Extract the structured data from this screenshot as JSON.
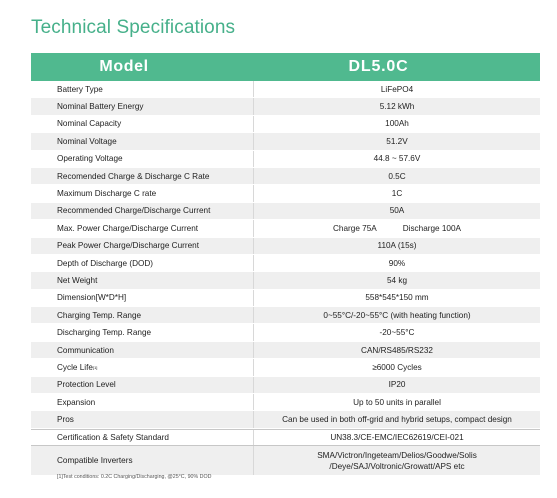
{
  "title": "Technical Specifications",
  "table": {
    "header_label": "Model",
    "header_value": "DL5.0C",
    "rows": [
      {
        "label": "Battery Type",
        "value": "LiFePO4"
      },
      {
        "label": "Nominal Battery Energy",
        "value": "5.12 kWh"
      },
      {
        "label": "Nominal Capacity",
        "value": "100Ah"
      },
      {
        "label": "Nominal Voltage",
        "value": "51.2V"
      },
      {
        "label": "Operating Voltage",
        "value": "44.8 ~ 57.6V"
      },
      {
        "label": "Recomended Charge & Discharge C Rate",
        "value": "0.5C"
      },
      {
        "label": "Maximum Discharge C rate",
        "value": "1C"
      },
      {
        "label": "Recommended Charge/Discharge Current",
        "value": "50A"
      },
      {
        "label": "Max. Power Charge/Discharge Current",
        "value_a": "Charge 75A",
        "value_b": "Discharge 100A"
      },
      {
        "label": "Peak Power Charge/Discharge Current",
        "value": "110A (15s)"
      },
      {
        "label": "Depth of Discharge (DOD)",
        "value": "90%"
      },
      {
        "label": "Net Weight",
        "value": "54 kg"
      },
      {
        "label": "Dimension[W*D*H]",
        "value": "558*545*150 mm"
      },
      {
        "label": "Charging Temp. Range",
        "value": "0~55°C/-20~55°C (with heating function)"
      },
      {
        "label": "Discharging Temp. Range",
        "value": "-20~55°C"
      },
      {
        "label": "Communication",
        "value": "CAN/RS485/RS232"
      },
      {
        "label": "Cycle Life",
        "label_sup": "[1]",
        "value": "≥6000 Cycles"
      },
      {
        "label": "Protection Level",
        "value": "IP20"
      },
      {
        "label": "Expansion",
        "value": "Up to 50 units in parallel"
      },
      {
        "label": "Pros",
        "value": "Can be used in both off-grid and hybrid setups, compact design"
      },
      {
        "label": "Certification & Safety Standard",
        "value": "UN38.3/CE-EMC/IEC62619/CEI-021"
      },
      {
        "label": "Compatible Inverters",
        "value_line1": "SMA/Victron/Ingeteam/Delios/Goodwe/Solis",
        "value_line2": "/Deye/SAJ/Voltronic/Growatt/APS etc"
      }
    ]
  },
  "footnote": "[1]Test conditions: 0.2C Charging/Discharging, @25°C, 90% DOD"
}
